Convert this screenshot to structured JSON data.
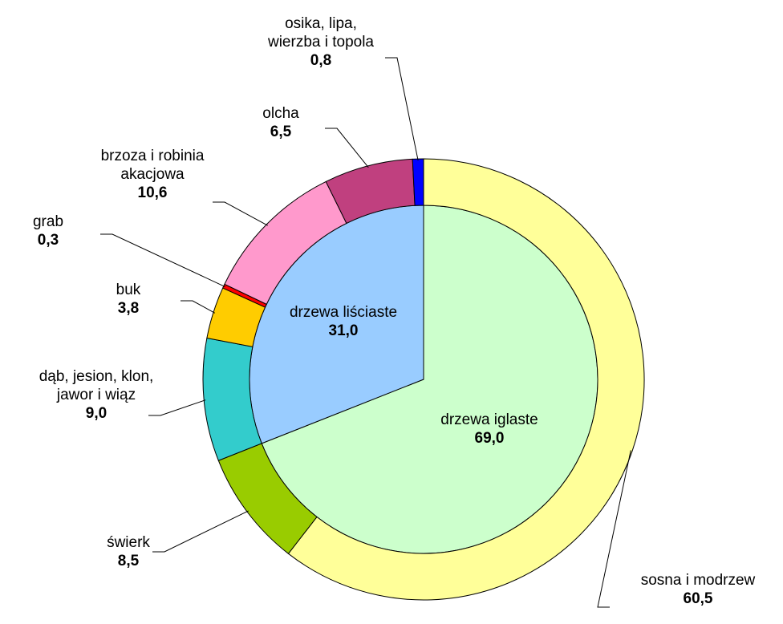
{
  "chart_data": {
    "type": "sunburst",
    "rings": [
      {
        "categories": [
          "drzewa iglaste",
          "drzewa liściaste"
        ],
        "values": [
          69.0,
          31.0
        ],
        "value_labels": [
          "69,0",
          "31,0"
        ],
        "colors": [
          "#ccffcc",
          "#99ccff"
        ]
      },
      {
        "categories": [
          "sosna i modrzew",
          "świerk",
          "dąb, jesion, klon,\njawor i wiąz",
          "buk",
          "grab",
          "brzoza i robinia\nakacjowa",
          "olcha",
          "osika, lipa,\nwierzba i topola"
        ],
        "values": [
          60.5,
          8.5,
          9.0,
          3.8,
          0.3,
          10.6,
          6.5,
          0.8
        ],
        "value_labels": [
          "60,5",
          "8,5",
          "9,0",
          "3,8",
          "0,3",
          "10,6",
          "6,5",
          "0,8"
        ],
        "colors": [
          "#ffff99",
          "#99cc00",
          "#33cccc",
          "#ffcc00",
          "#ff0000",
          "#ff99cc",
          "#c0407f",
          "#0000ff"
        ]
      }
    ]
  }
}
